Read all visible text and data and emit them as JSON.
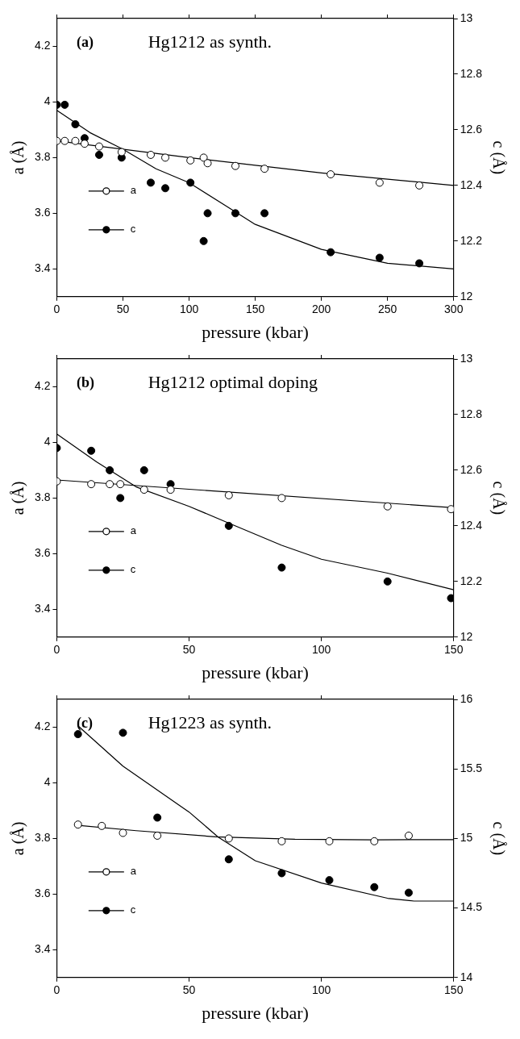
{
  "chart_data": [
    {
      "type": "scatter",
      "title": "Hg1212 as synth.",
      "annotations": [
        "(a)"
      ],
      "xlabel": "pressure (kbar)",
      "ylabel": "a (Å)",
      "y2label": "c (Å)",
      "xlim": [
        0,
        300
      ],
      "xticks": [
        0,
        50,
        100,
        150,
        200,
        250,
        300
      ],
      "ylim": [
        3.3,
        4.3
      ],
      "yticks": [
        3.4,
        3.6,
        3.8,
        4,
        4.2
      ],
      "y2lim": [
        12,
        13
      ],
      "y2ticks": [
        12,
        12.2,
        12.4,
        12.6,
        12.8,
        13
      ],
      "grid": false,
      "legend": "left",
      "series": [
        {
          "name": "a",
          "type": "scatter",
          "marker": "circle",
          "color": "#000000",
          "x": [
            0,
            6,
            14,
            21,
            32,
            49,
            71,
            82,
            101,
            111,
            114,
            135,
            157,
            207,
            244,
            274
          ],
          "values": [
            3.86,
            3.86,
            3.86,
            3.85,
            3.84,
            3.82,
            3.81,
            3.8,
            3.79,
            3.8,
            3.78,
            3.77,
            3.76,
            3.74,
            3.71,
            3.7
          ]
        },
        {
          "name": "c",
          "type": "scatter",
          "marker": "circle",
          "axis": "y2",
          "color": "#000000",
          "x": [
            0,
            6,
            14,
            21,
            32,
            49,
            71,
            82,
            101,
            111,
            114,
            135,
            157,
            207,
            244,
            274
          ],
          "values": [
            12.69,
            12.69,
            12.62,
            12.57,
            12.51,
            12.5,
            12.41,
            12.39,
            12.41,
            12.2,
            12.3,
            12.3,
            12.3,
            12.16,
            12.14,
            12.12
          ]
        },
        {
          "type": "line",
          "marker": "none",
          "color": "#000000",
          "x": [
            0,
            100,
            200,
            300
          ],
          "values": [
            3.86,
            3.8,
            3.745,
            3.7
          ]
        },
        {
          "type": "line",
          "marker": "none",
          "axis": "y2",
          "color": "#000000",
          "x": [
            0,
            25,
            50,
            75,
            100,
            150,
            200,
            250,
            300
          ],
          "values": [
            12.67,
            12.59,
            12.53,
            12.46,
            12.41,
            12.26,
            12.17,
            12.12,
            12.1
          ]
        }
      ]
    },
    {
      "type": "scatter",
      "title": "Hg1212 optimal doping",
      "annotations": [
        "(b)"
      ],
      "xlabel": "pressure (kbar)",
      "ylabel": "a (Å)",
      "y2label": "c (Å)",
      "xlim": [
        0,
        150
      ],
      "xticks": [
        0,
        50,
        100,
        150
      ],
      "ylim": [
        3.3,
        4.3
      ],
      "yticks": [
        3.4,
        3.6,
        3.8,
        4,
        4.2
      ],
      "y2lim": [
        12,
        13
      ],
      "y2ticks": [
        12,
        12.2,
        12.4,
        12.6,
        12.8,
        13
      ],
      "grid": false,
      "legend": "left",
      "series": [
        {
          "name": "a",
          "type": "scatter",
          "marker": "circle",
          "color": "#000000",
          "x": [
            0,
            13,
            20,
            24,
            33,
            43,
            65,
            85,
            125,
            149
          ],
          "values": [
            3.86,
            3.85,
            3.85,
            3.85,
            3.83,
            3.83,
            3.81,
            3.8,
            3.77,
            3.76
          ]
        },
        {
          "name": "c",
          "type": "scatter",
          "marker": "circle",
          "axis": "y2",
          "color": "#000000",
          "x": [
            0,
            13,
            20,
            24,
            33,
            43,
            65,
            85,
            125,
            149
          ],
          "values": [
            12.68,
            12.67,
            12.6,
            12.5,
            12.6,
            12.55,
            12.4,
            12.25,
            12.2,
            12.14
          ]
        },
        {
          "type": "line",
          "marker": "none",
          "color": "#000000",
          "x": [
            0,
            150
          ],
          "values": [
            3.865,
            3.765
          ]
        },
        {
          "type": "line",
          "marker": "none",
          "axis": "y2",
          "color": "#000000",
          "x": [
            0,
            15,
            30,
            50,
            65,
            85,
            100,
            125,
            150
          ],
          "values": [
            12.73,
            12.63,
            12.54,
            12.47,
            12.41,
            12.33,
            12.28,
            12.23,
            12.17
          ]
        }
      ]
    },
    {
      "type": "scatter",
      "title": "Hg1223 as synth.",
      "annotations": [
        "(c)"
      ],
      "xlabel": "pressure (kbar)",
      "ylabel": "a (Å)",
      "y2label": "c (Å)",
      "xlim": [
        0,
        150
      ],
      "xticks": [
        0,
        50,
        100,
        150
      ],
      "ylim": [
        3.3,
        4.3
      ],
      "yticks": [
        3.4,
        3.6,
        3.8,
        4,
        4.2
      ],
      "y2lim": [
        14,
        16
      ],
      "y2ticks": [
        14,
        14.5,
        15,
        15.5,
        16
      ],
      "grid": false,
      "legend": "left",
      "series": [
        {
          "name": "a",
          "type": "scatter",
          "marker": "circle",
          "color": "#000000",
          "x": [
            8,
            17,
            25,
            38,
            65,
            85,
            103,
            120,
            133
          ],
          "values": [
            3.85,
            3.845,
            3.82,
            3.81,
            3.8,
            3.79,
            3.79,
            3.79,
            3.81
          ]
        },
        {
          "name": "c",
          "type": "scatter",
          "marker": "circle",
          "axis": "y2",
          "color": "#000000",
          "x": [
            8,
            25,
            38,
            65,
            85,
            103,
            120,
            133
          ],
          "values": [
            15.75,
            15.76,
            15.15,
            14.85,
            14.75,
            14.7,
            14.65,
            14.61
          ]
        },
        {
          "type": "line",
          "marker": "none",
          "color": "#000000",
          "x": [
            8,
            30,
            60,
            90,
            120,
            150
          ],
          "values": [
            3.847,
            3.828,
            3.806,
            3.797,
            3.795,
            3.796
          ]
        },
        {
          "type": "line",
          "marker": "none",
          "axis": "y2",
          "color": "#000000",
          "x": [
            8,
            25,
            50,
            61,
            75,
            100,
            125,
            135,
            150
          ],
          "values": [
            15.81,
            15.52,
            15.19,
            15.01,
            14.84,
            14.68,
            14.57,
            14.55,
            14.55
          ]
        }
      ]
    }
  ]
}
